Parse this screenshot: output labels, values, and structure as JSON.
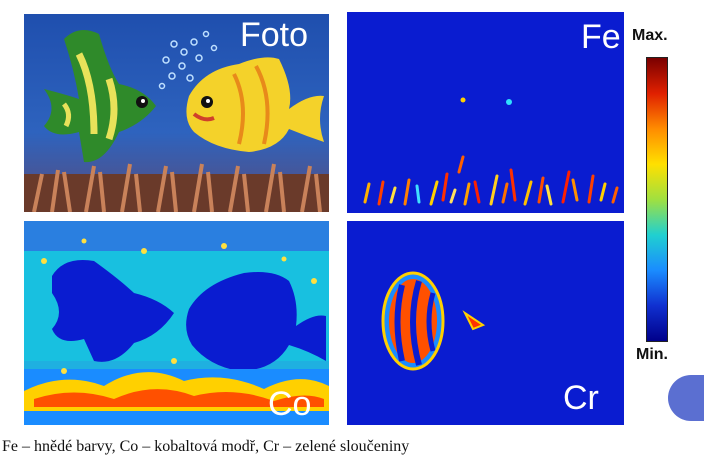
{
  "panels": {
    "foto": {
      "label": "Foto"
    },
    "fe": {
      "label": "Fe"
    },
    "co": {
      "label": "Co"
    },
    "cr": {
      "label": "Cr"
    }
  },
  "colorbar": {
    "max_label": "Max.",
    "min_label": "Min.",
    "colors": [
      "#7a0000",
      "#e02000",
      "#ff8c00",
      "#ffe000",
      "#a0e040",
      "#20d0d0",
      "#1a8cff",
      "#1030d0",
      "#00008a"
    ]
  },
  "caption": "Fe – hnědé barvy, Co – kobaltová modř, Cr – zelené sloučeniny",
  "colors": {
    "map_background": "#0a1cd0",
    "photo_water": "#2b58b0",
    "accent_circle": "#5b6fd1"
  }
}
